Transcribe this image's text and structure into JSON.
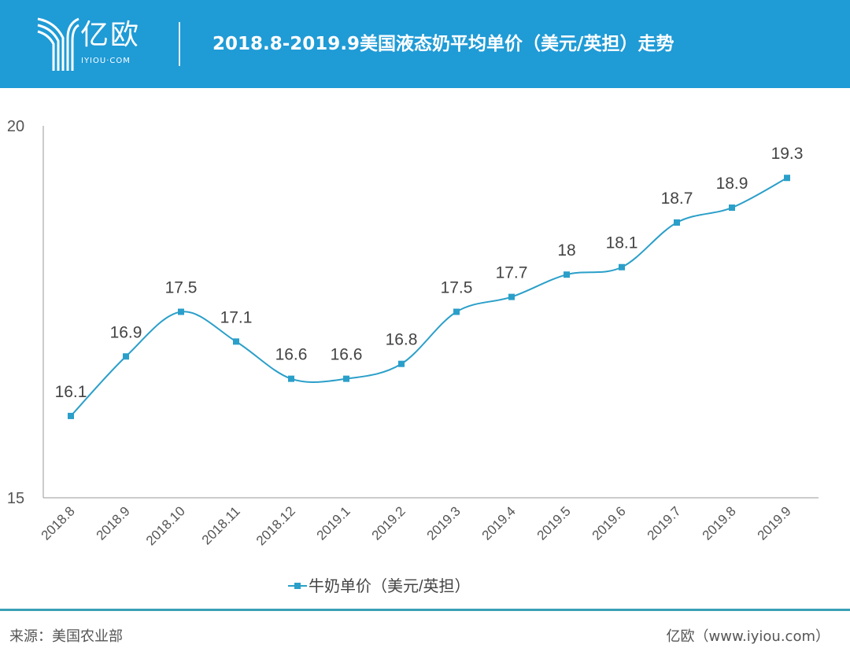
{
  "header": {
    "logo_text": "亿欧",
    "logo_sub": "IYIOU·COM",
    "title": "2018.8-2019.9美国液态奶平均单价（美元/英担）走势"
  },
  "colors": {
    "header": "#1f9bd6",
    "series": "#2a9fc9"
  },
  "chart_data": {
    "type": "line",
    "title": "2018.8-2019.9美国液态奶平均单价（美元/英担）走势",
    "categories": [
      "2018.8",
      "2018.9",
      "2018.10",
      "2018.11",
      "2018.12",
      "2019.1",
      "2019.2",
      "2019.3",
      "2019.4",
      "2019.5",
      "2019.6",
      "2019.7",
      "2019.8",
      "2019.9"
    ],
    "series": [
      {
        "name": "牛奶单价（美元/英担）",
        "values": [
          16.1,
          16.9,
          17.5,
          17.1,
          16.6,
          16.6,
          16.8,
          17.5,
          17.7,
          18,
          18.1,
          18.7,
          18.9,
          19.3
        ]
      }
    ],
    "data_labels": [
      "16.1",
      "16.9",
      "17.5",
      "17.1",
      "16.6",
      "16.6",
      "16.8",
      "17.5",
      "17.7",
      "18",
      "18.1",
      "18.7",
      "18.9",
      "19.3"
    ],
    "ylim": [
      15,
      20
    ],
    "yticks": [
      "15",
      "20"
    ],
    "xlabel": "",
    "ylabel": "",
    "grid": false,
    "legend": "bottom-center"
  },
  "footer": {
    "source": "来源：美国农业部",
    "credit": "亿欧（www.iyiou.com）"
  }
}
